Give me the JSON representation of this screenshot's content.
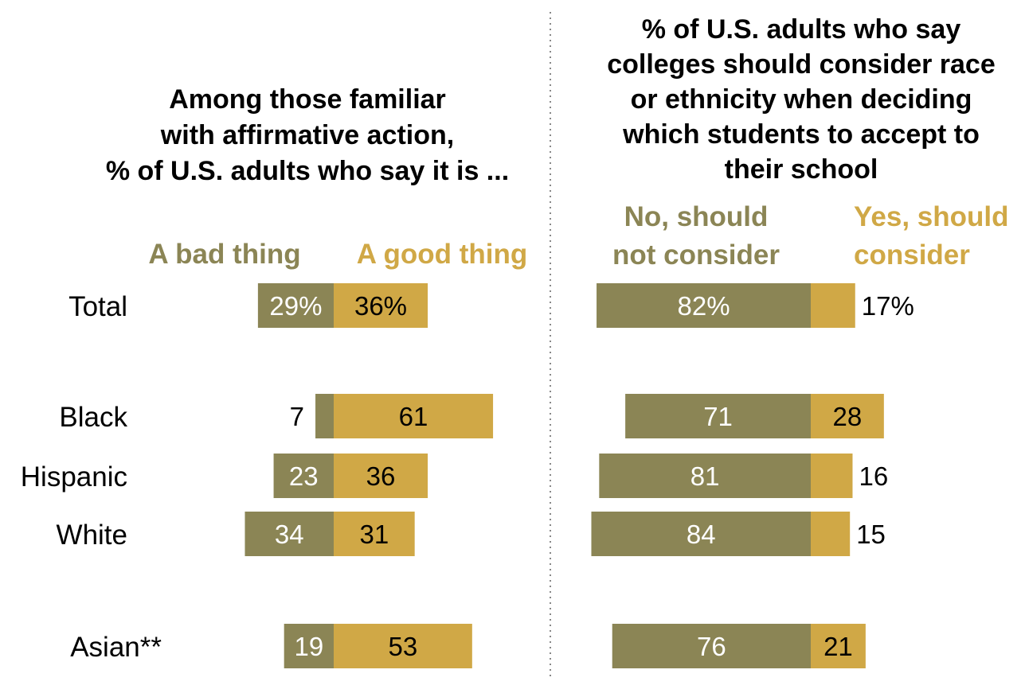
{
  "colors": {
    "negative": "#8b8555",
    "positive": "#d0a846",
    "divider": "#888888"
  },
  "chart_data": [
    {
      "type": "bar",
      "orientation": "diverging-horizontal",
      "title": [
        "Among those familiar",
        "with affirmative action,",
        "% of U.S. adults who say it is ..."
      ],
      "categories": [
        "Total",
        "Black",
        "Hispanic",
        "White",
        "Asian**"
      ],
      "series": [
        {
          "name": "A bad thing",
          "values": [
            29,
            7,
            23,
            34,
            19
          ],
          "labels": [
            "29%",
            "7",
            "23",
            "34",
            "19"
          ]
        },
        {
          "name": "A good thing",
          "values": [
            36,
            61,
            36,
            31,
            53
          ],
          "labels": [
            "36%",
            "61",
            "36",
            "31",
            "53"
          ]
        }
      ]
    },
    {
      "type": "bar",
      "orientation": "stacked-horizontal",
      "title": [
        "% of U.S. adults who say",
        "colleges should consider race",
        "or ethnicity when deciding",
        "which students to accept to",
        "their school"
      ],
      "categories": [
        "Total",
        "Black",
        "Hispanic",
        "White",
        "Asian**"
      ],
      "series": [
        {
          "name": "No, should not consider",
          "legend_lines": [
            "No, should",
            "not consider"
          ],
          "values": [
            82,
            71,
            81,
            84,
            76
          ],
          "labels": [
            "82%",
            "71",
            "81",
            "84",
            "76"
          ]
        },
        {
          "name": "Yes, should consider",
          "legend_lines": [
            "Yes, should",
            "consider"
          ],
          "values": [
            17,
            28,
            16,
            15,
            21
          ],
          "labels": [
            "17%",
            "28",
            "16",
            "15",
            "21"
          ]
        }
      ]
    }
  ]
}
